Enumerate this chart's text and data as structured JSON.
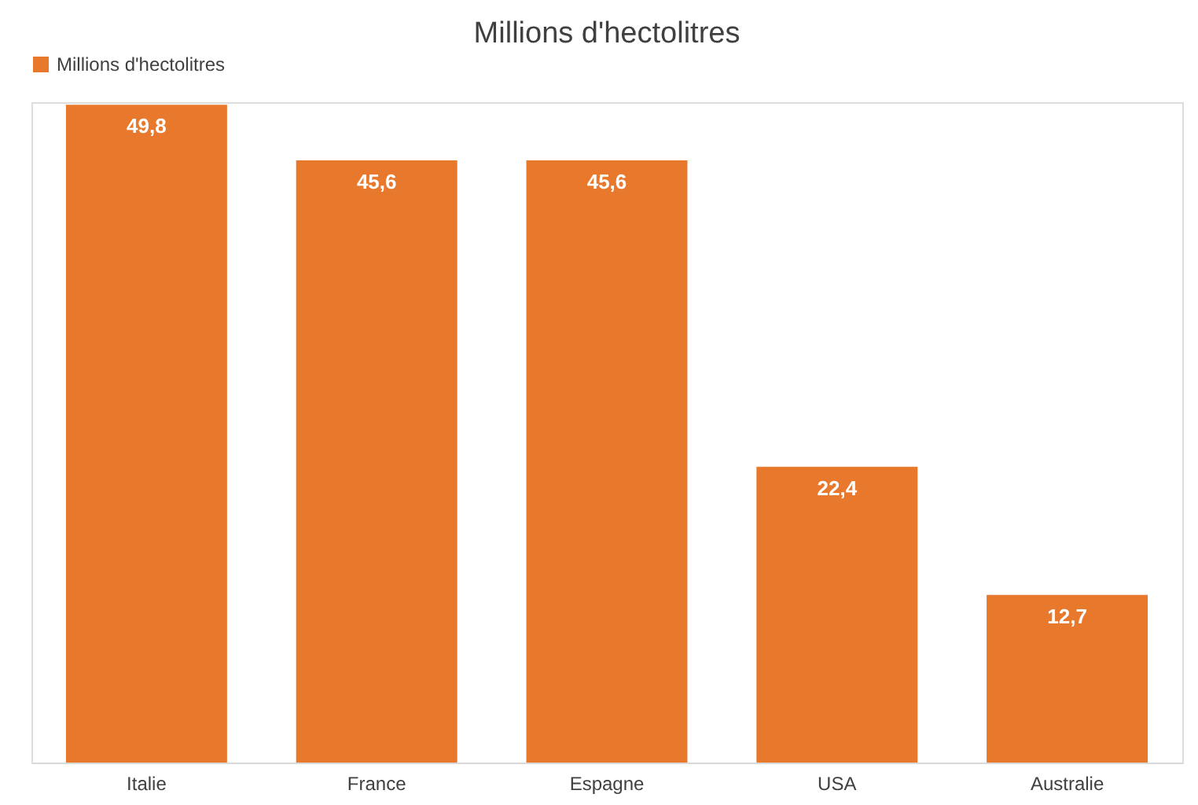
{
  "chart_data": {
    "type": "bar",
    "title": "Millions d'hectolitres",
    "categories": [
      "Italie",
      "France",
      "Espagne",
      "USA",
      "Australie"
    ],
    "series": [
      {
        "name": "Millions d'hectolitres",
        "color": "#e8782c",
        "values": [
          49.8,
          45.6,
          45.6,
          22.4,
          12.7
        ],
        "value_labels": [
          "49,8",
          "45,6",
          "45,6",
          "22,4",
          "12,7"
        ]
      }
    ],
    "legend": "top",
    "grid": false
  }
}
